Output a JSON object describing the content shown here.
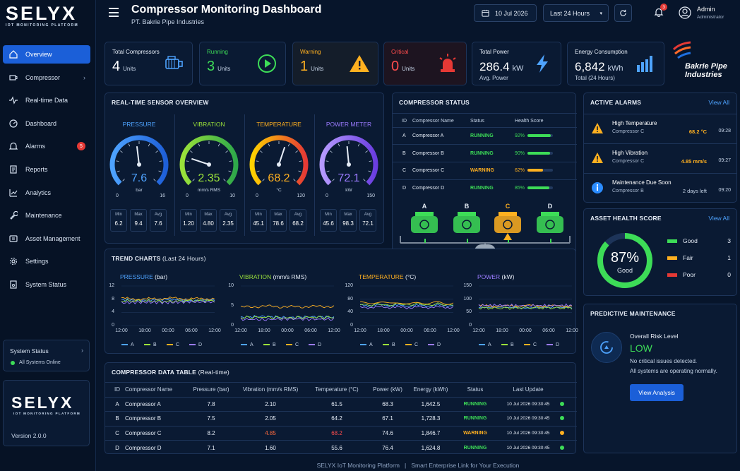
{
  "app": {
    "logo_big": "SELYX",
    "logo_small": "IOT MONITORING PLATFORM"
  },
  "sidebar": {
    "items": [
      {
        "label": "Overview",
        "icon": "home-icon"
      },
      {
        "label": "Compressor",
        "icon": "compressor-icon"
      },
      {
        "label": "Real-time Data",
        "icon": "pulse-icon"
      },
      {
        "label": "Dashboard",
        "icon": "dashboard-icon"
      },
      {
        "label": "Alarms",
        "icon": "bell-icon",
        "badge": "5"
      },
      {
        "label": "Reports",
        "icon": "report-icon"
      },
      {
        "label": "Analytics",
        "icon": "analytics-icon"
      },
      {
        "label": "Maintenance",
        "icon": "wrench-icon"
      },
      {
        "label": "Asset Management",
        "icon": "asset-icon"
      },
      {
        "label": "Settings",
        "icon": "gear-icon"
      },
      {
        "label": "System Status",
        "icon": "status-icon"
      }
    ],
    "system_status": {
      "title": "System Status",
      "value": "All Systems Online"
    },
    "footer_logo": {
      "big": "SELYX",
      "small": "IOT MONITORING PLATFORM",
      "version": "Version 2.0.0"
    }
  },
  "header": {
    "title": "Compressor Monitoring Dashboard",
    "subtitle": "PT. Bakrie Pipe Industries",
    "date": "10 Jul 2026",
    "range": "Last 24 Hours",
    "notif_count": "3",
    "user_name": "Admin",
    "user_role": "Administrator"
  },
  "kpis": {
    "total": {
      "label": "Total Compressors",
      "value": "4",
      "unit": "Units"
    },
    "running": {
      "label": "Running",
      "value": "3",
      "unit": "Units"
    },
    "warning": {
      "label": "Warning",
      "value": "1",
      "unit": "Units"
    },
    "critical": {
      "label": "Critical",
      "value": "0",
      "unit": "Units"
    },
    "power": {
      "label": "Total Power",
      "value": "286.4",
      "unit": "kW",
      "sub": "Avg. Power"
    },
    "energy": {
      "label": "Energy Consumption",
      "value": "6,842",
      "unit": "kWh",
      "sub": "Total (24 Hours)"
    }
  },
  "brand": {
    "line1": "Bakrie Pipe",
    "line2": "Industries"
  },
  "sensor_overview": {
    "title": "REAL-TIME SENSOR OVERVIEW",
    "gauges": [
      {
        "label": "PRESSURE",
        "value": "7.6",
        "unit": "bar",
        "min": "0",
        "max": "16",
        "fraction": 0.475,
        "color": "#4ea3ff",
        "stats": [
          {
            "k": "Min",
            "v": "6.2"
          },
          {
            "k": "Max",
            "v": "9.4"
          },
          {
            "k": "Avg",
            "v": "7.6"
          }
        ]
      },
      {
        "label": "VIBRATION",
        "value": "2.35",
        "unit": "mm/s RMS",
        "min": "0",
        "max": "10",
        "fraction": 0.235,
        "color": "#9be23a",
        "stats": [
          {
            "k": "Min",
            "v": "1.20"
          },
          {
            "k": "Max",
            "v": "4.80"
          },
          {
            "k": "Avg",
            "v": "2.35"
          }
        ]
      },
      {
        "label": "TEMPERATURE",
        "value": "68.2",
        "unit": "°C",
        "min": "0",
        "max": "120",
        "fraction": 0.568,
        "color": "#ffb020",
        "stats": [
          {
            "k": "Min",
            "v": "45.1"
          },
          {
            "k": "Max",
            "v": "78.6"
          },
          {
            "k": "Avg",
            "v": "68.2"
          }
        ]
      },
      {
        "label": "POWER METER",
        "value": "72.1",
        "unit": "kW",
        "min": "0",
        "max": "150",
        "fraction": 0.48,
        "color": "#9b7bff",
        "stats": [
          {
            "k": "Min",
            "v": "45.6"
          },
          {
            "k": "Max",
            "v": "98.3"
          },
          {
            "k": "Avg",
            "v": "72.1"
          }
        ]
      }
    ]
  },
  "compressor_status": {
    "title": "COMPRESSOR STATUS",
    "headers": [
      "ID",
      "Compressor Name",
      "Status",
      "Health Score"
    ],
    "rows": [
      {
        "id": "A",
        "name": "Compressor A",
        "status": "RUNNING",
        "health": "92%",
        "health_value": 0.92
      },
      {
        "id": "B",
        "name": "Compressor B",
        "status": "RUNNING",
        "health": "90%",
        "health_value": 0.9
      },
      {
        "id": "C",
        "name": "Compressor C",
        "status": "WARNING",
        "health": "62%",
        "health_value": 0.62
      },
      {
        "id": "D",
        "name": "Compressor D",
        "status": "RUNNING",
        "health": "85%",
        "health_value": 0.85
      }
    ],
    "diagram_labels": [
      "A",
      "B",
      "C",
      "D"
    ]
  },
  "alarms": {
    "title": "ACTIVE ALARMS",
    "view_all": "View All",
    "items": [
      {
        "title": "High Temperature",
        "source": "Compressor C",
        "value": "68.2 °C",
        "time": "09:28",
        "kind": "warning"
      },
      {
        "title": "High Vibration",
        "source": "Compressor C",
        "value": "4.85 mm/s",
        "time": "09:27",
        "kind": "warning"
      },
      {
        "title": "Maintenance Due Soon",
        "source": "Compressor B",
        "value": "2 days left",
        "time": "09:20",
        "kind": "info"
      }
    ]
  },
  "health": {
    "title": "ASSET HEALTH SCORE",
    "view_all": "View All",
    "score": "87%",
    "score_value": 0.87,
    "label": "Good",
    "legend": [
      {
        "label": "Good",
        "count": "3",
        "color": "#3ddc57"
      },
      {
        "label": "Fair",
        "count": "1",
        "color": "#ffb020"
      },
      {
        "label": "Poor",
        "count": "0",
        "color": "#e53935"
      }
    ]
  },
  "predictive": {
    "title": "PREDICTIVE MAINTENANCE",
    "risk_label": "Overall Risk Level",
    "risk_value": "LOW",
    "line1": "No critical issues detected.",
    "line2": "All systems are operating normally.",
    "button": "View Analysis"
  },
  "trends": {
    "title": "TREND CHARTS",
    "subtitle": "(Last 24 Hours)",
    "x_ticks": [
      "12:00",
      "18:00",
      "00:00",
      "06:00",
      "12:00"
    ],
    "legend": [
      "A",
      "B",
      "C",
      "D"
    ],
    "series_colors": [
      "#4ea3ff",
      "#9be23a",
      "#ffb020",
      "#9b7bff"
    ]
  },
  "chart_data": [
    {
      "type": "line",
      "title": "PRESSURE",
      "unit": "(bar)",
      "x": [
        "12:00",
        "18:00",
        "00:00",
        "06:00",
        "12:00"
      ],
      "ylim": [
        0,
        12
      ],
      "yticks": [
        0,
        4,
        8,
        12
      ],
      "series": [
        {
          "name": "A",
          "values": [
            7.8,
            7.6,
            8.0,
            7.5,
            7.8
          ]
        },
        {
          "name": "B",
          "values": [
            7.4,
            7.5,
            7.3,
            7.6,
            7.5
          ]
        },
        {
          "name": "C",
          "values": [
            8.2,
            8.0,
            8.3,
            8.1,
            8.2
          ]
        },
        {
          "name": "D",
          "values": [
            6.9,
            7.1,
            7.0,
            7.2,
            7.1
          ]
        }
      ]
    },
    {
      "type": "line",
      "title": "VIBRATION",
      "unit": "(mm/s RMS)",
      "x": [
        "12:00",
        "18:00",
        "00:00",
        "06:00",
        "12:00"
      ],
      "ylim": [
        0,
        10
      ],
      "yticks": [
        0,
        5,
        10
      ],
      "series": [
        {
          "name": "A",
          "values": [
            2.1,
            2.3,
            2.0,
            2.2,
            2.1
          ]
        },
        {
          "name": "B",
          "values": [
            2.0,
            2.1,
            1.9,
            2.1,
            2.05
          ]
        },
        {
          "name": "C",
          "values": [
            4.6,
            4.9,
            4.7,
            4.8,
            4.85
          ]
        },
        {
          "name": "D",
          "values": [
            1.6,
            1.5,
            1.7,
            1.6,
            1.6
          ]
        }
      ]
    },
    {
      "type": "line",
      "title": "TEMPERATURE",
      "unit": "(°C)",
      "x": [
        "12:00",
        "18:00",
        "00:00",
        "06:00",
        "12:00"
      ],
      "ylim": [
        0,
        120
      ],
      "yticks": [
        0,
        40,
        80,
        120
      ],
      "series": [
        {
          "name": "A",
          "values": [
            61,
            62,
            60,
            61,
            61.5
          ]
        },
        {
          "name": "B",
          "values": [
            64,
            63,
            65,
            64,
            64.2
          ]
        },
        {
          "name": "C",
          "values": [
            68,
            70,
            67,
            69,
            68.2
          ]
        },
        {
          "name": "D",
          "values": [
            55,
            56,
            55,
            56,
            55.6
          ]
        }
      ]
    },
    {
      "type": "line",
      "title": "POWER",
      "unit": "(kW)",
      "x": [
        "12:00",
        "18:00",
        "00:00",
        "06:00",
        "12:00"
      ],
      "ylim": [
        0,
        150
      ],
      "yticks": [
        0,
        50,
        100,
        150
      ],
      "series": [
        {
          "name": "A",
          "values": [
            68,
            70,
            66,
            69,
            68.3
          ]
        },
        {
          "name": "B",
          "values": [
            67,
            66,
            68,
            67,
            67.1
          ]
        },
        {
          "name": "C",
          "values": [
            75,
            73,
            76,
            74,
            74.6
          ]
        },
        {
          "name": "D",
          "values": [
            76,
            77,
            75,
            76,
            76.4
          ]
        }
      ]
    }
  ],
  "data_table": {
    "title": "COMPRESSOR DATA TABLE",
    "subtitle": "(Real-time)",
    "headers": [
      "ID",
      "Compressor Name",
      "Pressure (bar)",
      "Vibration (mm/s RMS)",
      "Temperature (°C)",
      "Power (kW)",
      "Energy (kWh)",
      "Status",
      "Last Update"
    ],
    "rows": [
      {
        "id": "A",
        "name": "Compressor A",
        "pressure": "7.8",
        "vibration": "2.10",
        "temp": "61.5",
        "power": "68.3",
        "energy": "1,642.5",
        "status": "RUNNING",
        "update": "10 Jul 2026 09:30:45"
      },
      {
        "id": "B",
        "name": "Compressor B",
        "pressure": "7.5",
        "vibration": "2.05",
        "temp": "64.2",
        "power": "67.1",
        "energy": "1,728.3",
        "status": "RUNNING",
        "update": "10 Jul 2026 09:30:45"
      },
      {
        "id": "C",
        "name": "Compressor C",
        "pressure": "8.2",
        "vibration": "4.85",
        "temp": "68.2",
        "power": "74.6",
        "energy": "1,846.7",
        "status": "WARNING",
        "update": "10 Jul 2026 09:30:45"
      },
      {
        "id": "D",
        "name": "Compressor D",
        "pressure": "7.1",
        "vibration": "1.60",
        "temp": "55.6",
        "power": "76.4",
        "energy": "1,624.8",
        "status": "RUNNING",
        "update": "10 Jul 2026 09:30:45"
      }
    ]
  },
  "footer": {
    "left": "SELYX IoT Monitoring Platform",
    "sep": "|",
    "right": "Smart Enterprise Link for Your Execution"
  }
}
